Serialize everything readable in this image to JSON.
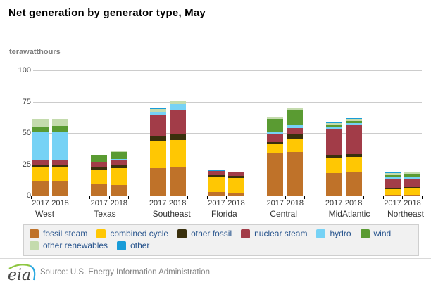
{
  "page": {
    "title": "Net generation by generator type, May",
    "unit_label": "terawatthours",
    "source": "Source: U.S. Energy Information Administration",
    "logo_text": "eia"
  },
  "colors": {
    "grid": "#cccccc",
    "axis": "#000000",
    "legend_text": "#27548d",
    "legend_bg": "#f1f1f1"
  },
  "chart_data": {
    "type": "bar",
    "stacked": true,
    "title": "Net generation by generator type, May",
    "ylabel": "terawatthours",
    "xlabel": "",
    "ylim": [
      0,
      100
    ],
    "yticks": [
      0,
      25,
      50,
      75,
      100
    ],
    "grid": true,
    "legend_position": "bottom",
    "categories": [
      "West",
      "Texas",
      "Southeast",
      "Florida",
      "Central",
      "MidAtlantic",
      "Northeast"
    ],
    "years": [
      "2017",
      "2018"
    ],
    "series": [
      {
        "name": "fossil steam",
        "color": "#bf7229",
        "values": {
          "West": [
            12.0,
            11.1
          ],
          "Texas": [
            9.6,
            8.3
          ],
          "Southeast": [
            21.7,
            22.3
          ],
          "Florida": [
            3.0,
            2.1
          ],
          "Central": [
            34.1,
            34.7
          ],
          "MidAtlantic": [
            18.0,
            18.5
          ],
          "Northeast": [
            0.5,
            0.6
          ]
        }
      },
      {
        "name": "combined cycle",
        "color": "#ffc703",
        "values": {
          "West": [
            11.0,
            11.8
          ],
          "Texas": [
            11.2,
            13.7
          ],
          "Southeast": [
            22.1,
            21.9
          ],
          "Florida": [
            11.5,
            11.8
          ],
          "Central": [
            7.1,
            10.7
          ],
          "MidAtlantic": [
            12.4,
            12.2
          ],
          "Northeast": [
            5.4,
            5.7
          ]
        }
      },
      {
        "name": "other fossil",
        "color": "#3a300d",
        "values": {
          "West": [
            1.7,
            1.7
          ],
          "Texas": [
            1.9,
            1.9
          ],
          "Southeast": [
            3.8,
            4.8
          ],
          "Florida": [
            1.7,
            1.7
          ],
          "Central": [
            1.3,
            3.4
          ],
          "MidAtlantic": [
            1.9,
            2.2
          ],
          "Northeast": [
            0.2,
            0.3
          ]
        }
      },
      {
        "name": "nuclear steam",
        "color": "#a23c48",
        "values": {
          "West": [
            3.9,
            4.3
          ],
          "Texas": [
            4.3,
            5.1
          ],
          "Southeast": [
            16.3,
            19.5
          ],
          "Florida": [
            3.4,
            2.8
          ],
          "Central": [
            6.2,
            5.1
          ],
          "MidAtlantic": [
            20.6,
            23.2
          ],
          "Northeast": [
            6.7,
            6.7
          ]
        }
      },
      {
        "name": "hydro",
        "color": "#76d2f5",
        "values": {
          "West": [
            21.9,
            22.1
          ],
          "Texas": [
            0.2,
            0.3
          ],
          "Southeast": [
            3.0,
            4.3
          ],
          "Florida": [
            0,
            0
          ],
          "Central": [
            2.2,
            2.8
          ],
          "MidAtlantic": [
            1.9,
            1.7
          ],
          "Northeast": [
            1.9,
            2.0
          ]
        }
      },
      {
        "name": "wind",
        "color": "#5a9b32",
        "values": {
          "West": [
            4.7,
            4.5
          ],
          "Texas": [
            4.7,
            5.5
          ],
          "Southeast": [
            0,
            0
          ],
          "Florida": [
            0,
            0
          ],
          "Central": [
            10.3,
            11.2
          ],
          "MidAtlantic": [
            1.3,
            1.7
          ],
          "Northeast": [
            1.5,
            1.7
          ]
        }
      },
      {
        "name": "other renewables",
        "color": "#c4dbad",
        "values": {
          "West": [
            6.2,
            5.8
          ],
          "Texas": [
            0.5,
            0.7
          ],
          "Southeast": [
            2.6,
            2.8
          ],
          "Florida": [
            0.6,
            0.5
          ],
          "Central": [
            1.5,
            1.9
          ],
          "MidAtlantic": [
            2.4,
            2.2
          ],
          "Northeast": [
            2.1,
            2.2
          ]
        }
      },
      {
        "name": "other",
        "color": "#199cd8",
        "values": {
          "West": [
            0,
            0
          ],
          "Texas": [
            0,
            0
          ],
          "Southeast": [
            0.1,
            0.1
          ],
          "Florida": [
            0.1,
            0.1
          ],
          "Central": [
            0,
            0.2
          ],
          "MidAtlantic": [
            0.1,
            0.3
          ],
          "Northeast": [
            0.1,
            0.1
          ]
        }
      }
    ]
  }
}
